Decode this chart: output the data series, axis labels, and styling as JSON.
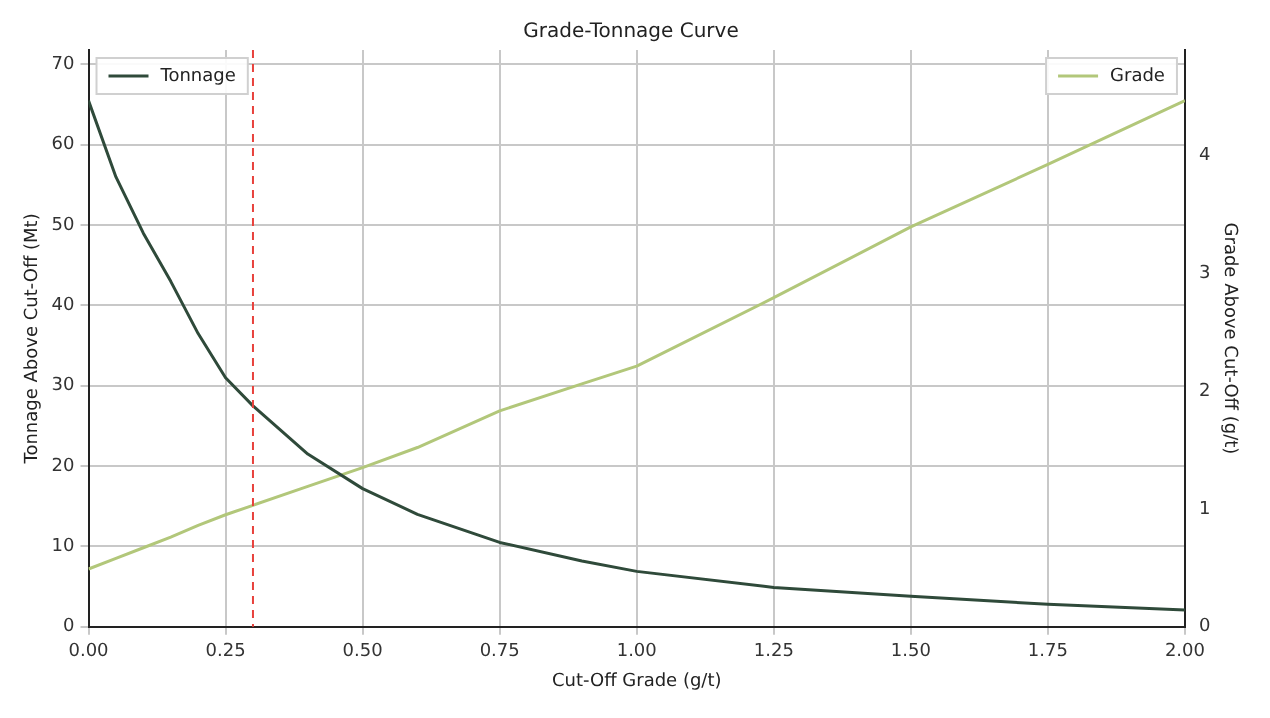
{
  "chart_data": {
    "type": "line",
    "title": "Grade-Tonnage Curve",
    "xlabel": "Cut-Off Grade (g/t)",
    "ylabel": "Tonnage Above Cut-Off (Mt)",
    "y2label": "Grade Above Cut-Off (g/t)",
    "x": [
      0,
      0.05,
      0.1,
      0.15,
      0.2,
      0.25,
      0.3,
      0.4,
      0.5,
      0.6,
      0.75,
      0.9,
      1.0,
      1.25,
      1.5,
      1.75,
      2.0
    ],
    "series": [
      {
        "name": "Tonnage",
        "color": "#2f4a3a",
        "values": [
          65.5,
          56,
          49,
          43,
          36.5,
          31,
          27.5,
          21.5,
          17.2,
          14,
          10.5,
          8.2,
          6.9,
          4.9,
          3.8,
          2.8,
          2.1
        ]
      },
      {
        "name": "Grade",
        "color": "#b2c77a",
        "axis": "y2",
        "values": [
          0.49,
          0.58,
          0.67,
          0.76,
          0.86,
          0.95,
          1.03,
          1.19,
          1.35,
          1.52,
          1.83,
          2.06,
          2.21,
          2.79,
          3.39,
          3.92,
          4.46
        ]
      }
    ],
    "xlim": [
      0,
      2
    ],
    "xticks": [
      {
        "value": 0,
        "label": "0.00"
      },
      {
        "value": 0.25,
        "label": "0.25"
      },
      {
        "value": 0.5,
        "label": "0.50"
      },
      {
        "value": 0.75,
        "label": "0.75"
      },
      {
        "value": 1,
        "label": "1.00"
      },
      {
        "value": 1.25,
        "label": "1.25"
      },
      {
        "value": 1.5,
        "label": "1.50"
      },
      {
        "value": 1.75,
        "label": "1.75"
      },
      {
        "value": 2,
        "label": "2.00"
      }
    ],
    "ylim": [
      0,
      71.8
    ],
    "yticks": [
      0,
      10,
      20,
      30,
      40,
      50,
      60,
      70
    ],
    "y2lim": [
      0,
      4.89
    ],
    "y2ticks": [
      0,
      1,
      2,
      3,
      4
    ],
    "ref_lines": [
      {
        "axis": "x",
        "value": 0.3,
        "color": "#e8413c",
        "line_style": "dashed"
      }
    ],
    "grid": true,
    "legend": "top left",
    "marker": "none",
    "line_style": "solid"
  }
}
